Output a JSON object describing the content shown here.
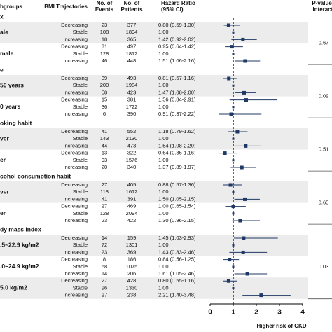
{
  "chart_data": {
    "type": "forest",
    "headers": [
      [
        "bgroups"
      ],
      [
        "BMI Trajectories"
      ],
      [
        "No. of",
        "Events"
      ],
      [
        "No. of",
        "Patients"
      ],
      [
        "Hazard Ratio",
        "(95% CI)"
      ],
      [
        "P-value f",
        "Interacti"
      ]
    ],
    "groups": [
      {
        "name": "x",
        "p_value": 0.67,
        "subgroups": [
          {
            "name": "ale",
            "rows": [
              {
                "trajectory": "Decreasing",
                "events": 23,
                "patients": 377,
                "hr": 0.8,
                "lower": 0.59,
                "upper": 1.3,
                "hr_label": "0.80 (0.59-1.30)"
              },
              {
                "trajectory": "Stable",
                "events": 108,
                "patients": 1894,
                "hr": 1.0,
                "hr_label": "1.00"
              },
              {
                "trajectory": "Increasing",
                "events": 18,
                "patients": 365,
                "hr": 1.42,
                "lower": 0.92,
                "upper": 2.02,
                "hr_label": "1.42 (0.92-2.02)"
              }
            ]
          },
          {
            "name": "male",
            "rows": [
              {
                "trajectory": "Decreasing",
                "events": 31,
                "patients": 497,
                "hr": 0.95,
                "lower": 0.64,
                "upper": 1.42,
                "hr_label": "0.95 (0.64-1.42)"
              },
              {
                "trajectory": "Stable",
                "events": 128,
                "patients": 1812,
                "hr": 1.0,
                "hr_label": "1.00"
              },
              {
                "trajectory": "Increasing",
                "events": 46,
                "patients": 448,
                "hr": 1.51,
                "lower": 1.06,
                "upper": 2.16,
                "hr_label": "1.51 (1.06-2.16)"
              }
            ]
          }
        ]
      },
      {
        "name": "e",
        "p_value": 0.09,
        "subgroups": [
          {
            "name": "50 years",
            "rows": [
              {
                "trajectory": "Decreasing",
                "events": 39,
                "patients": 493,
                "hr": 0.81,
                "lower": 0.57,
                "upper": 1.16,
                "hr_label": "0.81 (0.57-1.16)"
              },
              {
                "trajectory": "Stable",
                "events": 200,
                "patients": 1984,
                "hr": 1.0,
                "hr_label": "1.00"
              },
              {
                "trajectory": "Increasing",
                "events": 58,
                "patients": 423,
                "hr": 1.47,
                "lower": 1.08,
                "upper": 2.0,
                "hr_label": "1.47 (1.08-2.00)"
              }
            ]
          },
          {
            "name": "0 years",
            "rows": [
              {
                "trajectory": "Decreasing",
                "events": 15,
                "patients": 381,
                "hr": 1.56,
                "lower": 0.84,
                "upper": 2.91,
                "hr_label": "1.56 (0.84-2.91)"
              },
              {
                "trajectory": "Stable",
                "events": 36,
                "patients": 1722,
                "hr": 1.0,
                "hr_label": "1.00"
              },
              {
                "trajectory": "Increasing",
                "events": 6,
                "patients": 390,
                "hr": 0.91,
                "lower": 0.37,
                "upper": 2.22,
                "hr_label": "0.91 (0.37-2.22)"
              }
            ]
          }
        ]
      },
      {
        "name": "oking habit",
        "p_value": 0.51,
        "subgroups": [
          {
            "name": "ver",
            "rows": [
              {
                "trajectory": "Decreasing",
                "events": 41,
                "patients": 552,
                "hr": 1.18,
                "lower": 0.79,
                "upper": 1.62,
                "hr_label": "1.18 (0.79-1.62)"
              },
              {
                "trajectory": "Stable",
                "events": 143,
                "patients": 2130,
                "hr": 1.0,
                "hr_label": "1.00"
              },
              {
                "trajectory": "Increasing",
                "events": 44,
                "patients": 473,
                "hr": 1.54,
                "lower": 1.08,
                "upper": 2.2,
                "hr_label": "1.54 (1.08-2.20)"
              }
            ]
          },
          {
            "name": "er",
            "rows": [
              {
                "trajectory": "Decreasing",
                "events": 13,
                "patients": 322,
                "hr": 0.64,
                "lower": 0.35,
                "upper": 1.16,
                "hr_label": "0.64 (0.35-1.16)"
              },
              {
                "trajectory": "Stable",
                "events": 93,
                "patients": 1576,
                "hr": 1.0,
                "hr_label": "1.00"
              },
              {
                "trajectory": "Increasing",
                "events": 20,
                "patients": 340,
                "hr": 1.37,
                "lower": 0.89,
                "upper": 1.97,
                "hr_label": "1.37 (0.89-1.97)"
              }
            ]
          }
        ]
      },
      {
        "name": "cohol consumption habit",
        "p_value": 0.65,
        "subgroups": [
          {
            "name": "ver",
            "rows": [
              {
                "trajectory": "Decreasing",
                "events": 27,
                "patients": 405,
                "hr": 0.88,
                "lower": 0.57,
                "upper": 1.36,
                "hr_label": "0.88 (0.57-1.36)"
              },
              {
                "trajectory": "Stable",
                "events": 118,
                "patients": 1612,
                "hr": 1.0,
                "hr_label": "1.00"
              },
              {
                "trajectory": "Increasing",
                "events": 41,
                "patients": 391,
                "hr": 1.5,
                "lower": 1.05,
                "upper": 2.15,
                "hr_label": "1.50 (1.05-2.15)"
              }
            ]
          },
          {
            "name": "er",
            "rows": [
              {
                "trajectory": "Decreasing",
                "events": 27,
                "patients": 469,
                "hr": 1.0,
                "lower": 0.65,
                "upper": 1.54,
                "hr_label": "1.00 (0.65-1.54)"
              },
              {
                "trajectory": "Stable",
                "events": 128,
                "patients": 2094,
                "hr": 1.0,
                "hr_label": "1.00"
              },
              {
                "trajectory": "Increasing",
                "events": 23,
                "patients": 422,
                "hr": 1.3,
                "lower": 0.96,
                "upper": 2.15,
                "hr_label": "1.30 (0.96-2.15)"
              }
            ]
          }
        ]
      },
      {
        "name": "dy mass index",
        "p_value": 0.03,
        "subgroups": [
          {
            "name": ".5~22.9 kg/m2",
            "rows": [
              {
                "trajectory": "Decreasing",
                "events": 14,
                "patients": 159,
                "hr": 1.45,
                "lower": 1.03,
                "upper": 2.93,
                "hr_label": "1.45 (1.03-2.93)"
              },
              {
                "trajectory": "Stable",
                "events": 72,
                "patients": 1301,
                "hr": 1.0,
                "hr_label": "1.00"
              },
              {
                "trajectory": "Increasing",
                "events": 23,
                "patients": 369,
                "hr": 1.43,
                "lower": 0.83,
                "upper": 2.46,
                "hr_label": "1.43 (0.83-2.46)"
              }
            ]
          },
          {
            "name": ".0~24.9 kg/m2",
            "rows": [
              {
                "trajectory": "Decreasing",
                "events": 8,
                "patients": 186,
                "hr": 0.84,
                "lower": 0.56,
                "upper": 1.25,
                "hr_label": "0.84 (0.56-1.25)"
              },
              {
                "trajectory": "Stable",
                "events": 68,
                "patients": 1075,
                "hr": 1.0,
                "hr_label": "1.00"
              },
              {
                "trajectory": "Increasing",
                "events": 14,
                "patients": 206,
                "hr": 1.61,
                "lower": 1.05,
                "upper": 2.46,
                "hr_label": "1.61 (1.05-2.46)"
              }
            ]
          },
          {
            "name": "5.0 kg/m2",
            "rows": [
              {
                "trajectory": "Decreasing",
                "events": 27,
                "patients": 428,
                "hr": 0.8,
                "lower": 0.55,
                "upper": 1.16,
                "hr_label": "0.80 (0.55-1.16)"
              },
              {
                "trajectory": "Stable",
                "events": 96,
                "patients": 1330,
                "hr": 1.0,
                "hr_label": "1.00"
              },
              {
                "trajectory": "Increasing",
                "events": 27,
                "patients": 238,
                "hr": 2.21,
                "lower": 1.4,
                "upper": 3.48,
                "hr_label": "2.21 (1.40-3.48)"
              }
            ]
          }
        ]
      }
    ],
    "xlim": [
      0,
      4
    ],
    "xticks": [
      0,
      1,
      2,
      3,
      4
    ],
    "reference": 1,
    "xlabel": "Higher risk of CKD",
    "color": "#1f3864"
  }
}
